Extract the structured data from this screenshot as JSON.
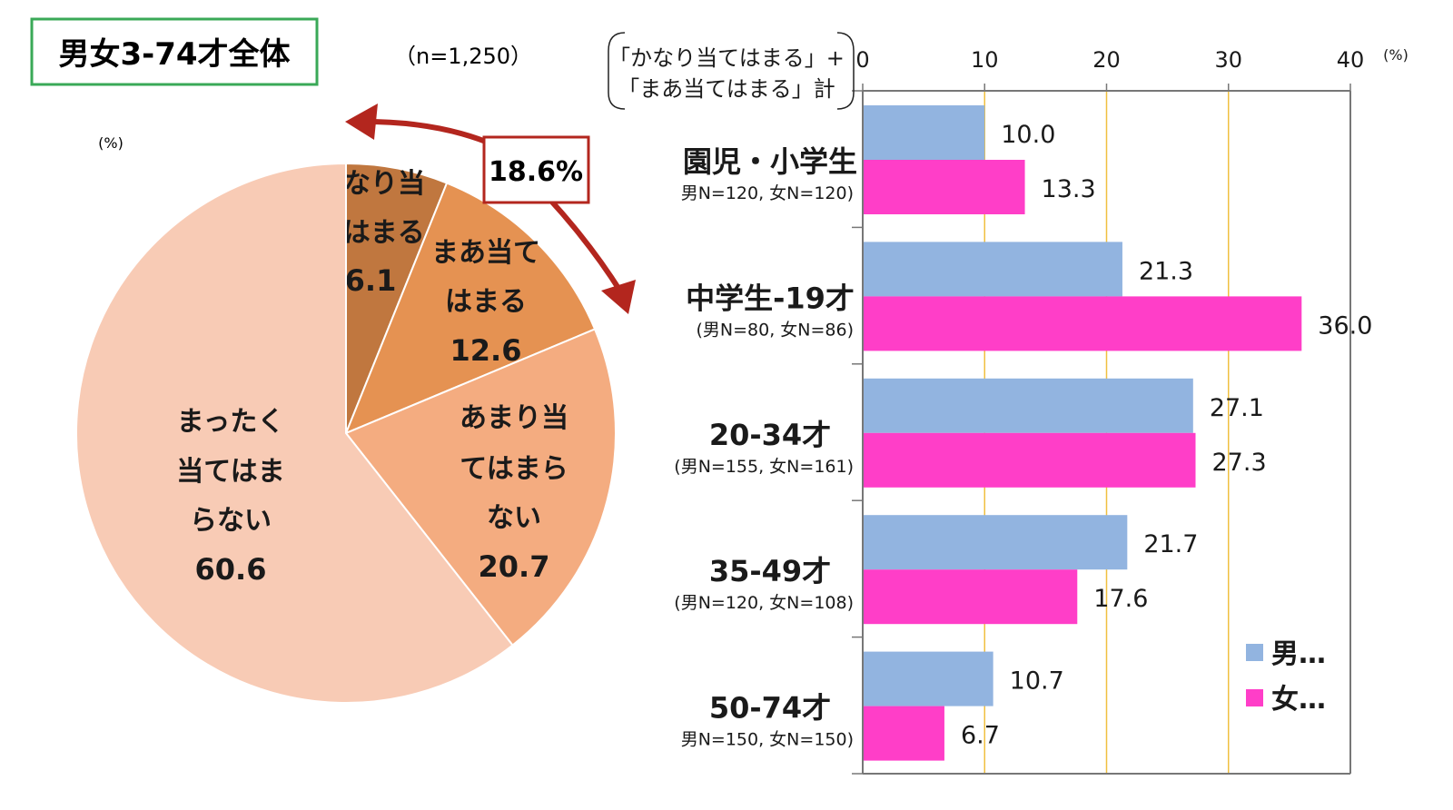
{
  "header": {
    "title_box": "男女3-74才全体",
    "n_label": "（n=1,250）",
    "pie_unit": "(%)",
    "highlight_total": "18.6%"
  },
  "colors": {
    "title_border": "#3aa957",
    "highlight_border": "#b3261e",
    "arrow": "#b3261e",
    "male": "#92b4e0",
    "female": "#ff3ec8",
    "gridline": "#f0c040",
    "axis": "#777777"
  },
  "chart_data": [
    {
      "type": "pie",
      "unit": "%",
      "start": "12 o'clock, clockwise",
      "slices": [
        {
          "label_lines": [
            "かなり当",
            "てはまる"
          ],
          "value": 6.1,
          "value_label": "6.1",
          "color": "#c0773f"
        },
        {
          "label_lines": [
            "まあ当て",
            "はまる"
          ],
          "value": 12.6,
          "value_label": "12.6",
          "color": "#e59252"
        },
        {
          "label_lines": [
            "あまり当",
            "てはまら",
            "ない"
          ],
          "value": 20.7,
          "value_label": "20.7",
          "color": "#f4ac80"
        },
        {
          "label_lines": [
            "まったく",
            "当てはま",
            "らない"
          ],
          "value": 60.6,
          "value_label": "60.6",
          "color": "#f8cbb5"
        }
      ]
    },
    {
      "type": "bar",
      "orientation": "horizontal",
      "measure_label_lines": [
        "「かなり当てはまる」+",
        "「まあ当てはまる」計"
      ],
      "unit_label": "(%)",
      "xlim": [
        0,
        40
      ],
      "xticks": [
        "0",
        "10",
        "20",
        "30",
        "40"
      ],
      "xtick_values": [
        0,
        10,
        20,
        30,
        40
      ],
      "grid": "vertical lines at 10, 20, 30",
      "legend_position": "bottom-right",
      "categories": [
        {
          "label": "園児・小学生",
          "n_label": "男N=120, 女N=120)"
        },
        {
          "label": "中学生-19才",
          "n_label": "(男N=80, 女N=86)"
        },
        {
          "label": "20-34才",
          "n_label": "(男N=155, 女N=161)"
        },
        {
          "label": "35-49才",
          "n_label": "(男N=120, 女N=108)"
        },
        {
          "label": "50-74才",
          "n_label": "男N=150, 女N=150)"
        }
      ],
      "series": [
        {
          "name": "男…",
          "color": "#92b4e0",
          "values": [
            10.0,
            21.3,
            27.1,
            21.7,
            10.7
          ],
          "value_labels": [
            "10.0",
            "21.3",
            "27.1",
            "21.7",
            "10.7"
          ]
        },
        {
          "name": "女…",
          "color": "#ff3ec8",
          "values": [
            13.3,
            36.0,
            27.3,
            17.6,
            6.7
          ],
          "value_labels": [
            "13.3",
            "36.0",
            "27.3",
            "17.6",
            "6.7"
          ]
        }
      ]
    }
  ]
}
